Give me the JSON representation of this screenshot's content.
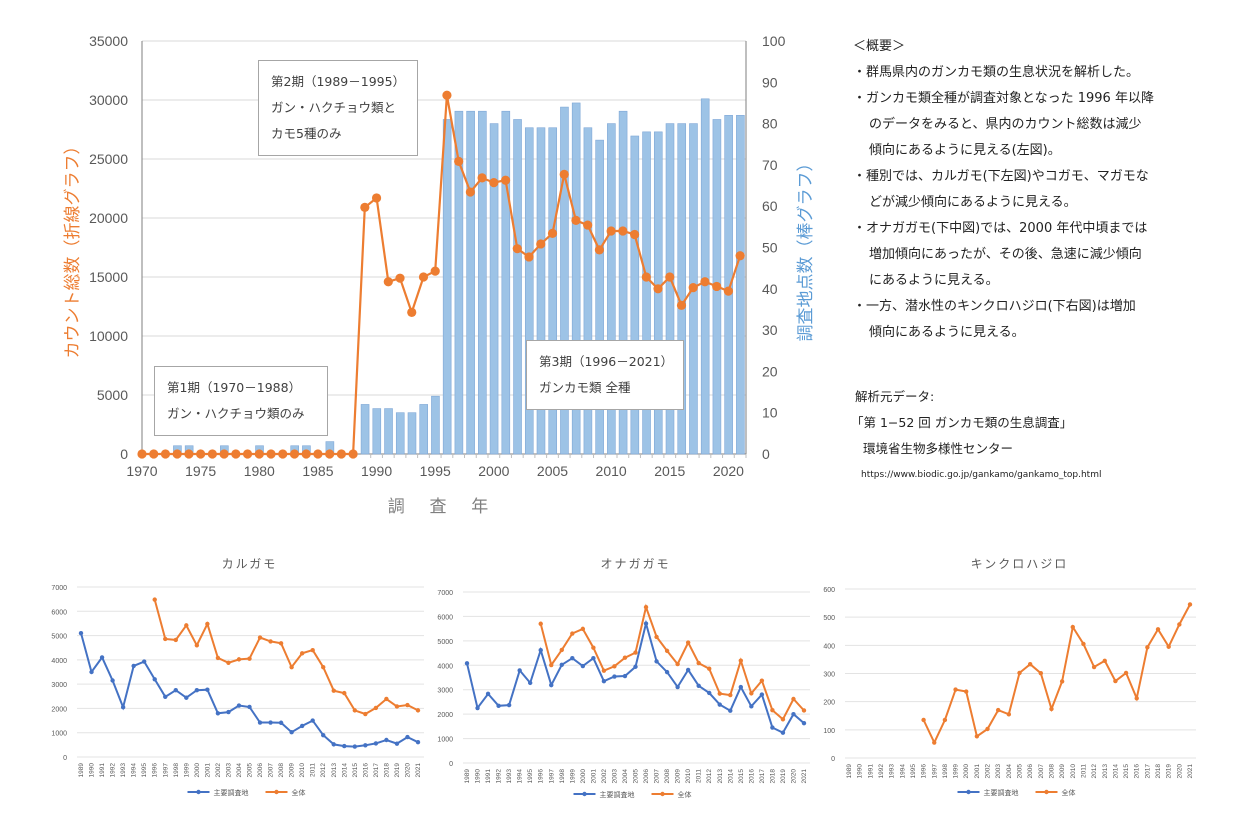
{
  "chart_data": [
    {
      "type": "bar+line",
      "name": "main",
      "xlabel": "調 査 年",
      "ylabel_left": "カウント総数（折線グラフ）",
      "ylabel_right": "調査地点数（棒グラフ）",
      "ylim_left": [
        0,
        35000
      ],
      "ylim_right": [
        0,
        100
      ],
      "yticks_left": [
        "0",
        "5000",
        "10000",
        "15000",
        "20000",
        "25000",
        "30000",
        "35000"
      ],
      "yticks_right": [
        "0",
        "10",
        "20",
        "30",
        "40",
        "50",
        "60",
        "70",
        "80",
        "90",
        "100"
      ],
      "xticks": [
        "1970",
        "1975",
        "1980",
        "1985",
        "1990",
        "1995",
        "2000",
        "2005",
        "2010",
        "2015",
        "2020"
      ],
      "grid": true,
      "colors": {
        "line": "#ed7d31",
        "bar": "#9dc3e6",
        "bar_edge": "#7fa7d6",
        "left_label": "#ed7d31",
        "right_label": "#5b9bd5"
      },
      "x": [
        1970,
        1971,
        1972,
        1973,
        1974,
        1975,
        1976,
        1977,
        1978,
        1979,
        1980,
        1981,
        1982,
        1983,
        1984,
        1985,
        1986,
        1987,
        1988,
        1989,
        1990,
        1991,
        1992,
        1993,
        1994,
        1995,
        1996,
        1997,
        1998,
        1999,
        2000,
        2001,
        2002,
        2003,
        2004,
        2005,
        2006,
        2007,
        2008,
        2009,
        2010,
        2011,
        2012,
        2013,
        2014,
        2015,
        2016,
        2017,
        2018,
        2019,
        2020,
        2021
      ],
      "series": [
        {
          "name": "カウント総数",
          "kind": "line",
          "values": [
            0,
            0,
            0,
            0,
            0,
            0,
            0,
            0,
            0,
            0,
            0,
            0,
            0,
            0,
            0,
            0,
            0,
            0,
            0,
            20900,
            21700,
            14600,
            14900,
            12000,
            15000,
            15500,
            30400,
            24800,
            22200,
            23400,
            23000,
            23200,
            17400,
            16700,
            17800,
            18700,
            23700,
            19800,
            19400,
            17300,
            18900,
            18900,
            18600,
            15000,
            14000,
            15000,
            12600,
            14100,
            14600,
            14200,
            13800,
            16800
          ]
        },
        {
          "name": "調査地点数",
          "kind": "bar",
          "values": [
            0,
            0,
            0,
            2,
            2,
            0,
            0,
            2,
            0,
            0,
            2,
            0,
            0,
            2,
            2,
            0,
            3,
            0,
            0,
            12,
            11,
            11,
            10,
            10,
            12,
            14,
            81,
            83,
            83,
            83,
            80,
            83,
            81,
            79,
            79,
            79,
            84,
            85,
            79,
            76,
            80,
            83,
            77,
            78,
            78,
            80,
            80,
            80,
            86,
            81,
            82,
            82
          ]
        }
      ],
      "annotations": [
        {
          "lines": [
            "第1期（1970－1988）",
            "ガン・ハクチョウ類のみ"
          ]
        },
        {
          "lines": [
            "第2期（1989－1995）",
            "ガン・ハクチョウ類と",
            "カモ5種のみ"
          ]
        },
        {
          "lines": [
            "第3期（1996－2021）",
            "ガンカモ類 全種"
          ]
        }
      ]
    },
    {
      "type": "line",
      "name": "karugamo",
      "title": "カルガモ",
      "ylim": [
        0,
        7000
      ],
      "yticks": [
        "0",
        "1000",
        "2000",
        "3000",
        "4000",
        "5000",
        "6000",
        "7000"
      ],
      "x": [
        "1989",
        "1990",
        "1991",
        "1992",
        "1993",
        "1994",
        "1995",
        "1996",
        "1997",
        "1998",
        "1999",
        "2000",
        "2001",
        "2002",
        "2003",
        "2004",
        "2005",
        "2006",
        "2007",
        "2008",
        "2009",
        "2010",
        "2011",
        "2012",
        "2013",
        "2014",
        "2015",
        "2016",
        "2017",
        "2018",
        "2019",
        "2020",
        "2021"
      ],
      "series": [
        {
          "name": "主要調査地",
          "color": "#4472c4",
          "values": [
            5100,
            3500,
            4100,
            3150,
            2050,
            3750,
            3930,
            3200,
            2480,
            2750,
            2440,
            2750,
            2770,
            1800,
            1850,
            2120,
            2060,
            1420,
            1420,
            1410,
            1020,
            1280,
            1500,
            900,
            520,
            450,
            430,
            480,
            560,
            700,
            550,
            820,
            610
          ]
        },
        {
          "name": "全体",
          "color": "#ed7d31",
          "values": [
            null,
            null,
            null,
            null,
            null,
            null,
            null,
            6480,
            4860,
            4820,
            5420,
            4600,
            5480,
            4080,
            3880,
            4020,
            4050,
            4920,
            4760,
            4680,
            3700,
            4270,
            4400,
            3700,
            2730,
            2630,
            1920,
            1770,
            2020,
            2390,
            2080,
            2140,
            1920
          ]
        }
      ],
      "legend": [
        "主要調査地",
        "全体"
      ],
      "legend_position": "bottom"
    },
    {
      "type": "line",
      "name": "onagagamo",
      "title": "オナガガモ",
      "ylim": [
        0,
        7000
      ],
      "yticks": [
        "0",
        "1000",
        "2000",
        "3000",
        "4000",
        "5000",
        "6000",
        "7000"
      ],
      "x": [
        "1989",
        "1990",
        "1991",
        "1992",
        "1993",
        "1994",
        "1995",
        "1996",
        "1997",
        "1998",
        "1999",
        "2000",
        "2001",
        "2002",
        "2003",
        "2004",
        "2005",
        "2006",
        "2007",
        "2008",
        "2009",
        "2010",
        "2011",
        "2012",
        "2013",
        "2014",
        "2015",
        "2016",
        "2017",
        "2018",
        "2019",
        "2020",
        "2021"
      ],
      "series": [
        {
          "name": "主要調査地",
          "color": "#4472c4",
          "values": [
            4080,
            2250,
            2830,
            2340,
            2370,
            3790,
            3280,
            4620,
            3190,
            4020,
            4290,
            3970,
            4290,
            3350,
            3540,
            3560,
            3940,
            5710,
            4160,
            3720,
            3110,
            3810,
            3160,
            2870,
            2390,
            2140,
            3110,
            2320,
            2800,
            1450,
            1240,
            2000,
            1630
          ]
        },
        {
          "name": "全体",
          "color": "#ed7d31",
          "values": [
            null,
            null,
            null,
            null,
            null,
            null,
            null,
            5700,
            4010,
            4630,
            5300,
            5490,
            4720,
            3780,
            3960,
            4310,
            4520,
            6380,
            5160,
            4590,
            4050,
            4930,
            4090,
            3860,
            2840,
            2780,
            4190,
            2850,
            3370,
            2160,
            1790,
            2620,
            2150
          ]
        }
      ],
      "legend": [
        "主要調査地",
        "全体"
      ],
      "legend_position": "bottom"
    },
    {
      "type": "line",
      "name": "kinkurohajiro",
      "title": "キンクロハジロ",
      "ylim": [
        0,
        600
      ],
      "yticks": [
        "0",
        "100",
        "200",
        "300",
        "400",
        "500",
        "600"
      ],
      "x": [
        "1989",
        "1990",
        "1991",
        "1992",
        "1993",
        "1994",
        "1995",
        "1996",
        "1997",
        "1998",
        "1999",
        "2000",
        "2001",
        "2002",
        "2003",
        "2004",
        "2005",
        "2006",
        "2007",
        "2008",
        "2009",
        "2010",
        "2011",
        "2012",
        "2013",
        "2014",
        "2015",
        "2016",
        "2017",
        "2018",
        "2019",
        "2020",
        "2021"
      ],
      "series": [
        {
          "name": "主要調査地",
          "color": "#4472c4",
          "values": [
            null,
            null,
            null,
            null,
            null,
            null,
            null,
            null,
            null,
            null,
            null,
            null,
            null,
            null,
            null,
            null,
            null,
            null,
            null,
            null,
            null,
            null,
            null,
            null,
            null,
            null,
            null,
            null,
            null,
            null,
            null,
            null,
            null
          ]
        },
        {
          "name": "全体",
          "color": "#ed7d31",
          "values": [
            null,
            null,
            null,
            null,
            null,
            null,
            null,
            135,
            55,
            135,
            243,
            236,
            77,
            103,
            170,
            155,
            302,
            333,
            301,
            174,
            272,
            465,
            405,
            323,
            345,
            273,
            302,
            212,
            393,
            457,
            395,
            474,
            545
          ]
        }
      ],
      "legend": [
        "主要調査地",
        "全体"
      ],
      "legend_position": "bottom"
    }
  ],
  "summary": {
    "heading": "＜概要＞",
    "lines": [
      {
        "text": "・群馬県内のガンカモ類の生息状況を解析した。",
        "indent": false
      },
      {
        "text": "・ガンカモ類全種が調査対象となった 1996 年以降",
        "indent": false
      },
      {
        "text": "のデータをみると、県内のカウント総数は減少",
        "indent": true
      },
      {
        "text": "傾向にあるように見える(左図)。",
        "indent": true
      },
      {
        "text": "・種別では、カルガモ(下左図)やコガモ、マガモな",
        "indent": false
      },
      {
        "text": "どが減少傾向にあるように見える。",
        "indent": true
      },
      {
        "text": "・オナガガモ(下中図)では、2000 年代中頃までは",
        "indent": false
      },
      {
        "text": "増加傾向にあったが、その後、急速に減少傾向",
        "indent": true
      },
      {
        "text": "にあるように見える。",
        "indent": true
      },
      {
        "text": "・一方、潜水性のキンクロハジロ(下右図)は増加",
        "indent": false
      },
      {
        "text": "傾向にあるように見える。",
        "indent": true
      }
    ]
  },
  "source": {
    "label": "解析元データ:",
    "title": "「第 1−52 回 ガンカモ類の生息調査」",
    "org": "環境省生物多様性センター",
    "url": "https://www.biodic.go.jp/gankamo/gankamo_top.html"
  }
}
